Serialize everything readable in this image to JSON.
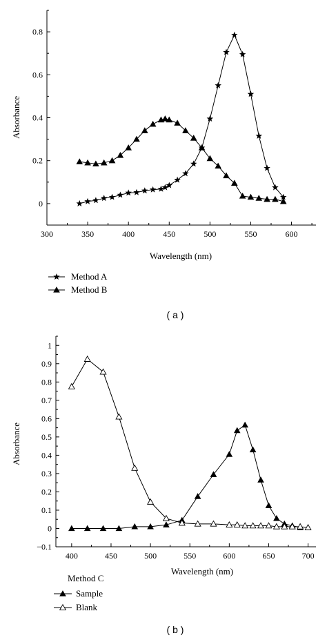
{
  "colors": {
    "ink": "#000000",
    "background": "#ffffff"
  },
  "chart_data": [
    {
      "type": "line",
      "panel_label": "( a )",
      "xlabel": "Wavelength (nm)",
      "ylabel": "Absorbance",
      "xlim": [
        300,
        630
      ],
      "ylim": [
        -0.1,
        0.9
      ],
      "x_ticks": [
        300,
        350,
        400,
        450,
        500,
        550,
        600
      ],
      "y_ticks": [
        0,
        0.2,
        0.4,
        0.6,
        0.8
      ],
      "y_tick_labels": [
        "0",
        "0.2",
        "0.4",
        "0.6",
        "0.8"
      ],
      "grid": false,
      "legend_position": "bottom-left, below plot",
      "series": [
        {
          "name": "Method A",
          "marker": "star",
          "x": [
            340,
            350,
            360,
            370,
            380,
            390,
            400,
            410,
            420,
            430,
            440,
            445,
            450,
            460,
            470,
            480,
            490,
            500,
            510,
            520,
            530,
            540,
            550,
            560,
            570,
            580,
            590
          ],
          "y": [
            0.0,
            0.01,
            0.015,
            0.025,
            0.03,
            0.04,
            0.05,
            0.052,
            0.06,
            0.065,
            0.068,
            0.075,
            0.085,
            0.11,
            0.14,
            0.185,
            0.26,
            0.395,
            0.55,
            0.705,
            0.785,
            0.695,
            0.51,
            0.315,
            0.165,
            0.075,
            0.03
          ]
        },
        {
          "name": "Method B",
          "marker": "filled-triangle",
          "x": [
            340,
            350,
            360,
            370,
            380,
            390,
            400,
            410,
            420,
            430,
            440,
            445,
            450,
            460,
            470,
            480,
            490,
            500,
            510,
            520,
            530,
            540,
            550,
            560,
            570,
            580,
            590
          ],
          "y": [
            0.195,
            0.19,
            0.185,
            0.19,
            0.2,
            0.225,
            0.26,
            0.3,
            0.34,
            0.37,
            0.39,
            0.395,
            0.39,
            0.375,
            0.34,
            0.305,
            0.26,
            0.21,
            0.175,
            0.13,
            0.095,
            0.035,
            0.03,
            0.025,
            0.02,
            0.02,
            0.01
          ]
        }
      ]
    },
    {
      "type": "line",
      "panel_label": "( b )",
      "xlabel": "Wavelength (nm)",
      "ylabel": "Absorbance",
      "xlim": [
        380,
        710
      ],
      "ylim": [
        -0.1,
        1.05
      ],
      "x_ticks": [
        400,
        450,
        500,
        550,
        600,
        650,
        700
      ],
      "y_ticks": [
        -0.1,
        0,
        0.1,
        0.2,
        0.3,
        0.4,
        0.5,
        0.6,
        0.7,
        0.8,
        0.9,
        1
      ],
      "y_tick_labels": [
        "−0.1",
        "0",
        "0.1",
        "0.2",
        "0.3",
        "0.4",
        "0.5",
        "0.6",
        "0.7",
        "0.8",
        "0.9",
        "1"
      ],
      "grid": false,
      "legend_title": "Method C",
      "legend_position": "bottom-left, below plot",
      "series": [
        {
          "name": "Sample",
          "marker": "filled-triangle",
          "x": [
            400,
            420,
            440,
            460,
            480,
            500,
            520,
            540,
            560,
            580,
            600,
            610,
            620,
            630,
            640,
            650,
            660,
            670,
            680,
            690
          ],
          "y": [
            0.0,
            0.0,
            0.0,
            0.0,
            0.01,
            0.01,
            0.02,
            0.045,
            0.175,
            0.295,
            0.405,
            0.535,
            0.565,
            0.43,
            0.265,
            0.125,
            0.055,
            0.025,
            0.015,
            0.005
          ]
        },
        {
          "name": "Blank",
          "marker": "open-triangle",
          "x": [
            400,
            420,
            440,
            460,
            480,
            500,
            520,
            540,
            560,
            580,
            600,
            610,
            620,
            630,
            640,
            650,
            660,
            670,
            680,
            690,
            700
          ],
          "y": [
            0.775,
            0.925,
            0.855,
            0.61,
            0.33,
            0.145,
            0.055,
            0.03,
            0.025,
            0.025,
            0.02,
            0.02,
            0.015,
            0.015,
            0.015,
            0.015,
            0.01,
            0.01,
            0.01,
            0.01,
            0.005
          ]
        }
      ]
    }
  ]
}
